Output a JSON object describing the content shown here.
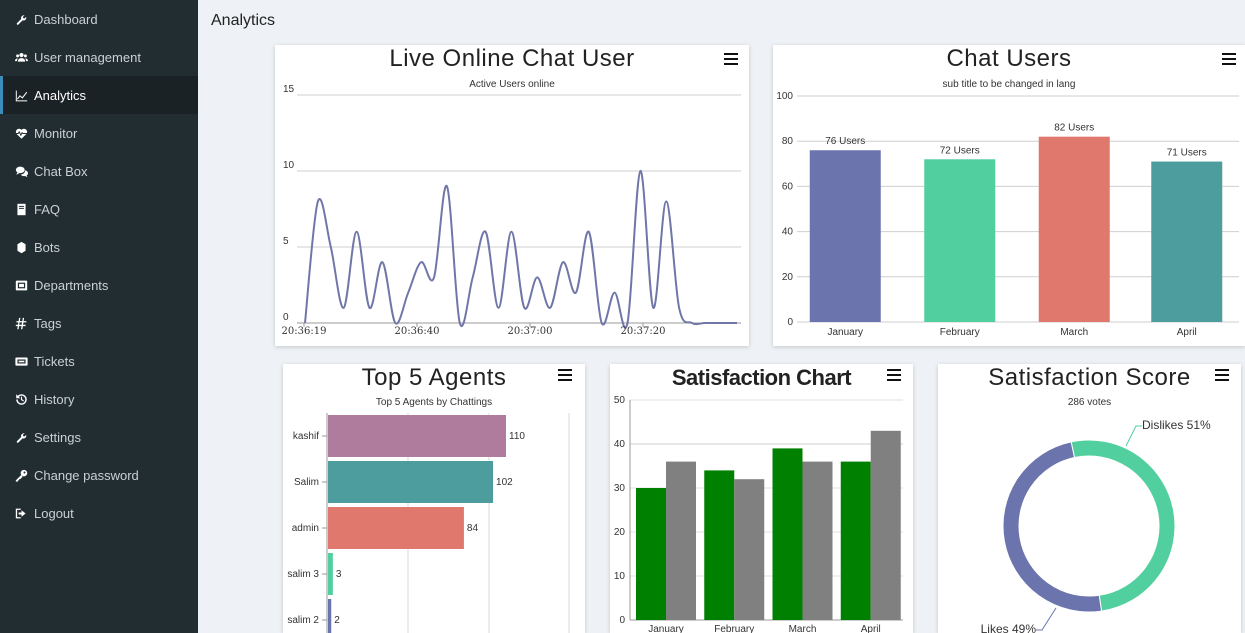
{
  "page": {
    "title": "Analytics"
  },
  "sidebar": {
    "items": [
      {
        "label": "Dashboard",
        "icon": "wrench-icon",
        "active": false
      },
      {
        "label": "User management",
        "icon": "users-icon",
        "active": false
      },
      {
        "label": "Analytics",
        "icon": "line-chart-icon",
        "active": true
      },
      {
        "label": "Monitor",
        "icon": "heartbeat-icon",
        "active": false
      },
      {
        "label": "Chat Box",
        "icon": "comments-icon",
        "active": false
      },
      {
        "label": "FAQ",
        "icon": "book-icon",
        "active": false
      },
      {
        "label": "Bots",
        "icon": "bot-icon",
        "active": false
      },
      {
        "label": "Departments",
        "icon": "sitemap-icon",
        "active": false
      },
      {
        "label": "Tags",
        "icon": "hashtag-icon",
        "active": false
      },
      {
        "label": "Tickets",
        "icon": "ticket-icon",
        "active": false
      },
      {
        "label": "History",
        "icon": "history-icon",
        "active": false
      },
      {
        "label": "Settings",
        "icon": "wrench-icon",
        "active": false
      },
      {
        "label": "Change password",
        "icon": "key-icon",
        "active": false
      },
      {
        "label": "Logout",
        "icon": "sign-out-icon",
        "active": false
      }
    ]
  },
  "chart_data": [
    {
      "id": "live",
      "type": "line",
      "title": "Live Online Chat User",
      "subtitle": "Active Users online",
      "color": "#7077a8",
      "ylim": [
        0,
        15
      ],
      "yticks": [
        0,
        5,
        10,
        15
      ],
      "xtick_labels": [
        "20:36:19",
        "20:36:40",
        "20:37:00",
        "20:37:20"
      ],
      "x": [
        0,
        1,
        2,
        3,
        4,
        5,
        6,
        7,
        8,
        9,
        10,
        11,
        12,
        13,
        14,
        15,
        16,
        17,
        18,
        19,
        20,
        21,
        22,
        23,
        24,
        25,
        26,
        27,
        28,
        29,
        30,
        31,
        32,
        33,
        34
      ],
      "values": [
        0,
        8,
        5,
        1,
        6,
        1,
        4,
        0,
        2,
        4,
        3,
        9,
        0,
        3,
        6,
        1,
        6,
        1,
        3,
        1,
        4,
        2,
        6,
        0,
        2,
        0,
        10,
        1,
        8,
        1,
        0,
        0,
        0,
        0,
        0
      ]
    },
    {
      "id": "chat-users",
      "type": "bar",
      "title": "Chat Users",
      "subtitle": "sub title to be changed in lang",
      "categories": [
        "January",
        "February",
        "March",
        "April"
      ],
      "values": [
        76,
        72,
        82,
        71
      ],
      "data_labels": [
        "76 Users",
        "72 Users",
        "82 Users",
        "71 Users"
      ],
      "colors": [
        "#6b74ad",
        "#52cf9f",
        "#e0786e",
        "#4e9d9e"
      ],
      "ylim": [
        0,
        100
      ],
      "yticks": [
        0,
        20,
        40,
        60,
        80,
        100
      ]
    },
    {
      "id": "top-agents",
      "type": "bar",
      "orientation": "horizontal",
      "title": "Top 5 Agents",
      "subtitle": "Top 5 Agents by Chattings",
      "categories": [
        "kashif",
        "Salim",
        "admin",
        "salim 3",
        "salim 2"
      ],
      "values": [
        110,
        102,
        84,
        3,
        2
      ],
      "colors": [
        "#b07c9e",
        "#4e9d9e",
        "#e0786e",
        "#52cf9f",
        "#6b74ad"
      ]
    },
    {
      "id": "satisfaction-chart",
      "type": "bar",
      "title": "Satisfaction Chart",
      "categories": [
        "January",
        "February",
        "March",
        "April"
      ],
      "series": [
        {
          "values": [
            30,
            34,
            39,
            36
          ],
          "color": "#008000"
        },
        {
          "values": [
            36,
            32,
            36,
            43
          ],
          "color": "#808080"
        }
      ],
      "ylim": [
        0,
        50
      ],
      "yticks": [
        0,
        10,
        20,
        30,
        40,
        50
      ]
    },
    {
      "id": "satisfaction-score",
      "type": "pie",
      "title": "Satisfaction Score",
      "subtitle": "286 votes",
      "slices": [
        {
          "label": "Dislikes 51%",
          "value": 51,
          "color": "#52cf9f"
        },
        {
          "label": "Likes 49%",
          "value": 49,
          "color": "#6b74ad"
        }
      ]
    }
  ]
}
